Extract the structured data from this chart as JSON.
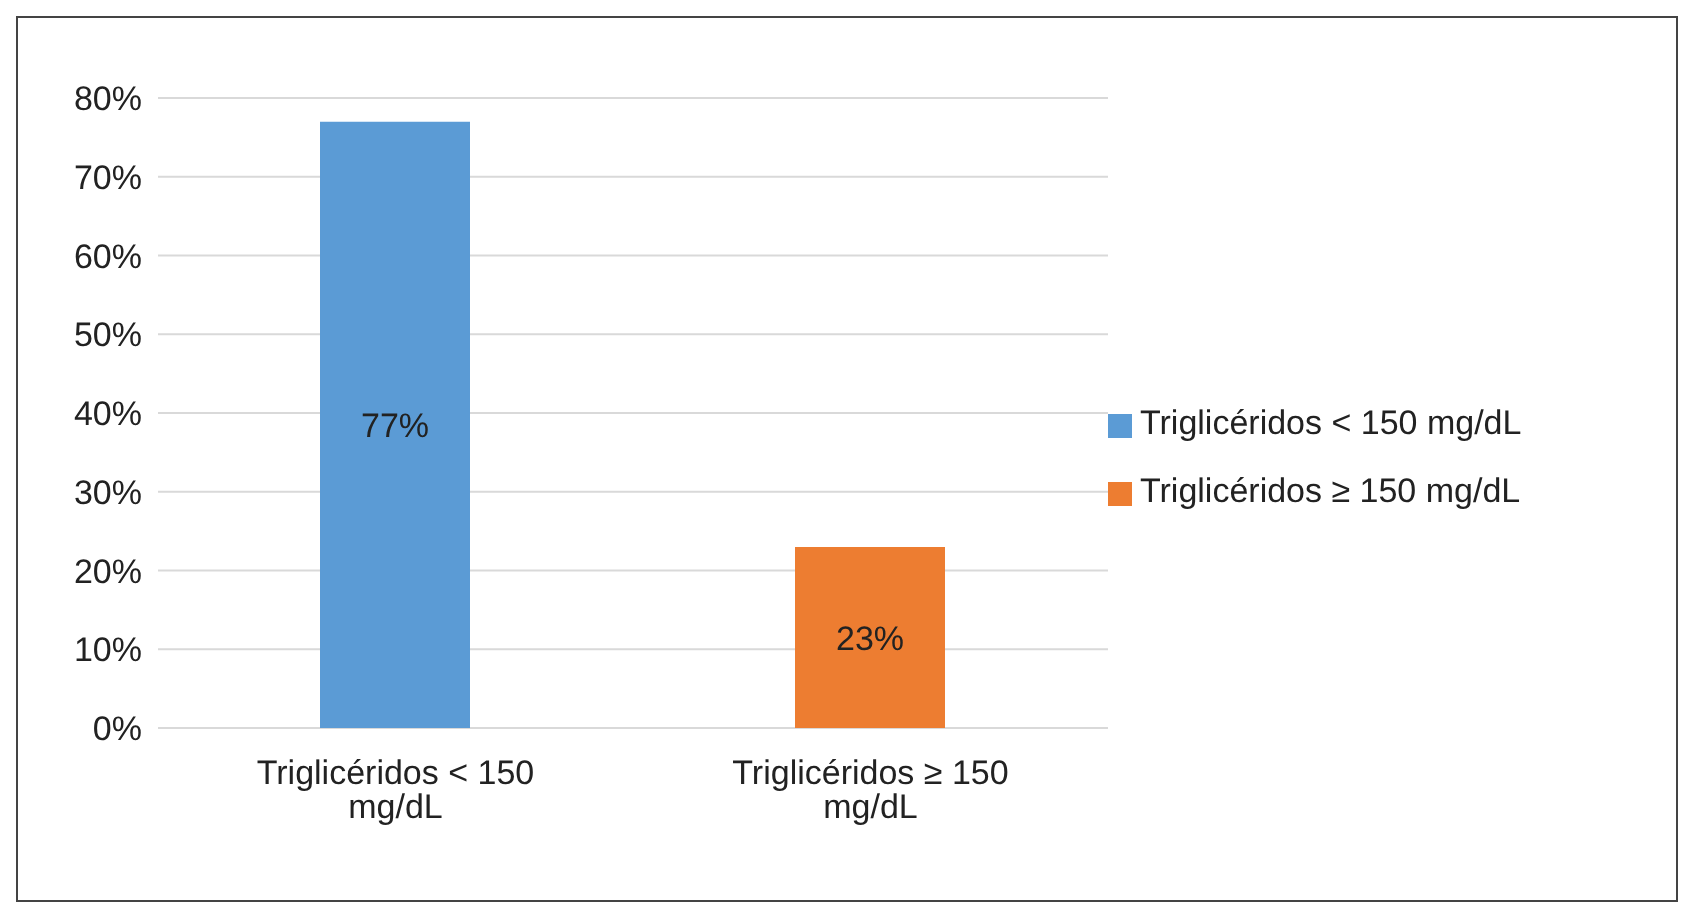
{
  "chart_data": {
    "type": "bar",
    "categories": [
      "Triglicéridos < 150 mg/dL",
      "Triglicéridos ≥ 150 mg/dL"
    ],
    "series": [
      {
        "name": "Triglicéridos < 150 mg/dL",
        "color": "#5b9bd5",
        "values": [
          77,
          null
        ],
        "value_labels": [
          "77%",
          null
        ]
      },
      {
        "name": "Triglicéridos ≥ 150 mg/dL",
        "color": "#ed7d31",
        "values": [
          null,
          23
        ],
        "value_labels": [
          null,
          "23%"
        ]
      }
    ],
    "ylim": [
      0,
      80
    ],
    "yticks": [
      {
        "value": 0,
        "label": "0%"
      },
      {
        "value": 10,
        "label": "10%"
      },
      {
        "value": 20,
        "label": "20%"
      },
      {
        "value": 30,
        "label": "30%"
      },
      {
        "value": 40,
        "label": "40%"
      },
      {
        "value": 50,
        "label": "50%"
      },
      {
        "value": 60,
        "label": "60%"
      },
      {
        "value": 70,
        "label": "70%"
      },
      {
        "value": 80,
        "label": "80%"
      }
    ],
    "grid": "y",
    "legend": "right"
  }
}
